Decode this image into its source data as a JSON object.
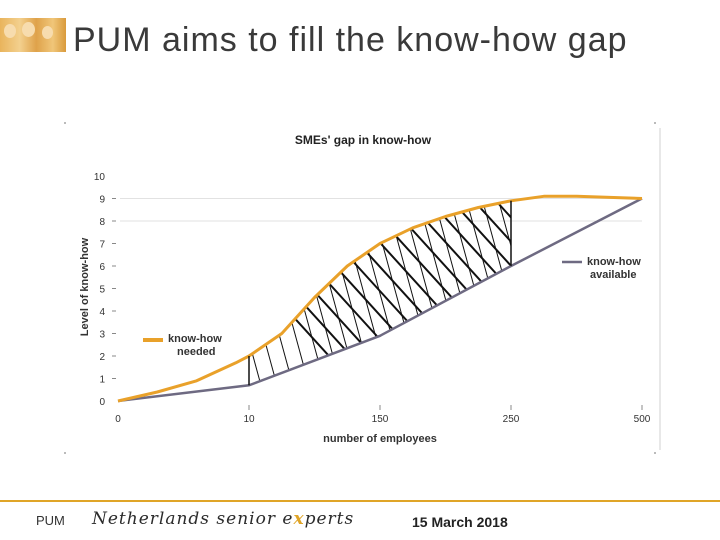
{
  "slide": {
    "title": "PUM aims to fill the know-how gap"
  },
  "footer": {
    "org": "PUM",
    "brand_before": "Netherlands senior e",
    "brand_x": "x",
    "brand_after": "perts",
    "date": "15 March 2018"
  },
  "colors": {
    "needed": "#e9a12a",
    "available": "#6e6a82",
    "accent": "#e0a528"
  },
  "chart_data": {
    "type": "line",
    "title": "SMEs' gap in know-how",
    "xlabel": "number of employees",
    "ylabel": "Level of know-how",
    "x_scale": "categorical",
    "categories": [
      "0",
      "10",
      "150",
      "250",
      "500"
    ],
    "ylim": [
      0,
      10
    ],
    "yticks": [
      0,
      1,
      2,
      3,
      4,
      5,
      6,
      7,
      8,
      9,
      10
    ],
    "gridlines_at": [
      8,
      9
    ],
    "series": [
      {
        "name": "know-how needed",
        "label_lines": [
          "know-how",
          "needed"
        ],
        "x": [
          0,
          0.3,
          0.6,
          0.9,
          1.0,
          1.25,
          1.5,
          1.75,
          2.0,
          2.25,
          2.5,
          2.75,
          3.0,
          3.25,
          3.5,
          4.0
        ],
        "y": [
          0.0,
          0.4,
          0.9,
          1.7,
          2.0,
          3.0,
          4.6,
          6.0,
          7.0,
          7.7,
          8.2,
          8.6,
          8.9,
          9.1,
          9.1,
          9.0
        ]
      },
      {
        "name": "know-how available",
        "label_lines": [
          "know-how",
          "available"
        ],
        "x": [
          0,
          1.0,
          2.0,
          3.0,
          4.0
        ],
        "y": [
          0.0,
          0.7,
          2.9,
          6.0,
          9.0
        ]
      }
    ],
    "gap_range": [
      1.0,
      3.0
    ],
    "gap_markers_at": [
      1.0,
      3.0
    ]
  }
}
